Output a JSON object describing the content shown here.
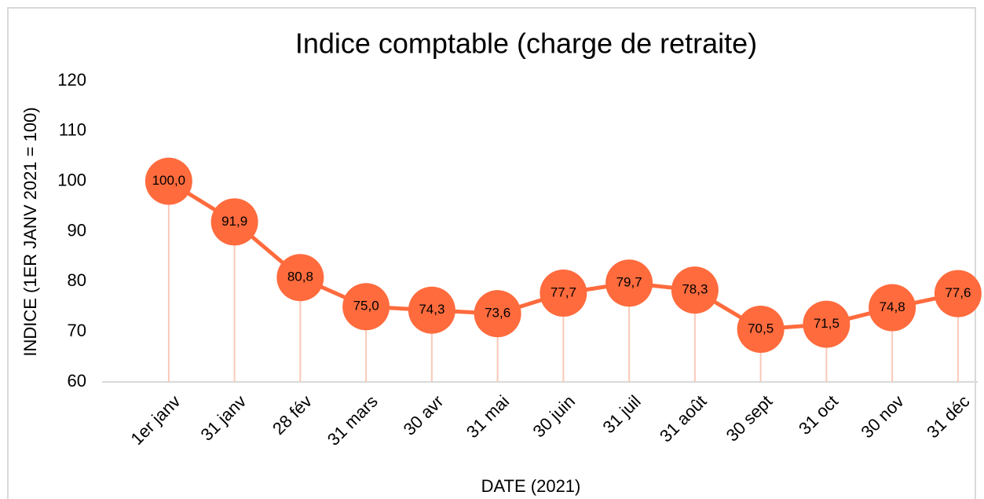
{
  "chart_data": {
    "type": "line",
    "title": "Indice comptable (charge de retraite)",
    "x_label": "DATE (2021)",
    "y_label": "INDICE (1ER JANV 2021 = 100)",
    "categories": [
      "1er janv",
      "31 janv",
      "28 fév",
      "31 mars",
      "30 avr",
      "31 mai",
      "30 juin",
      "31 juil",
      "31 août",
      "30 sept",
      "31 oct",
      "30 nov",
      "31 déc"
    ],
    "series": [
      {
        "name": "Indice",
        "color": "#ff6b3d",
        "values": [
          100.0,
          91.9,
          80.8,
          75.0,
          74.3,
          73.6,
          77.7,
          79.7,
          78.3,
          70.5,
          71.5,
          74.8,
          77.6
        ],
        "value_labels": [
          "100,0",
          "91,9",
          "80,8",
          "75,0",
          "74,3",
          "73,6",
          "77,7",
          "79,7",
          "78,3",
          "70,5",
          "71,5",
          "74,8",
          "77,6"
        ]
      }
    ],
    "ylim": [
      60,
      120
    ],
    "yticks": [
      60,
      70,
      80,
      90,
      100,
      110,
      120
    ],
    "drop_lines": true
  }
}
